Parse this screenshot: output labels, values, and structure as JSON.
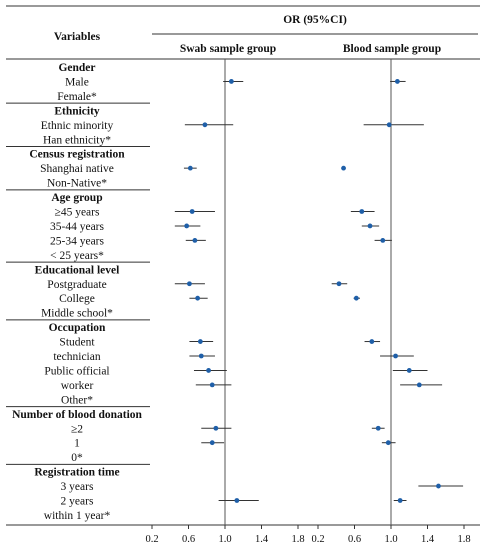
{
  "header": {
    "variables_label": "Variables",
    "or_label": "OR (95%CI)",
    "swab_label": "Swab sample group",
    "blood_label": "Blood sample group"
  },
  "colors": {
    "point": "#1f5fa8",
    "line": "#333333"
  },
  "chart_data": [
    {
      "type": "forest",
      "title": "Swab sample group",
      "xlim": [
        0.2,
        1.8
      ],
      "xticks": [
        0.2,
        0.6,
        1.0,
        1.4,
        1.8
      ],
      "reference_line": 1.0,
      "rows": [
        {
          "group": "Gender",
          "label": "Male",
          "or": 1.07,
          "lo": 0.98,
          "hi": 1.2
        },
        {
          "group": "Gender",
          "label": "Female*",
          "or": null
        },
        {
          "group": "Ethnicity",
          "label": "Ethnic minority",
          "or": 0.78,
          "lo": 0.56,
          "hi": 1.09
        },
        {
          "group": "Ethnicity",
          "label": "Han ethnicity*",
          "or": null
        },
        {
          "group": "Census registration",
          "label": "Shanghai native",
          "or": 0.62,
          "lo": 0.55,
          "hi": 0.69
        },
        {
          "group": "Census registration",
          "label": "Non-Native*",
          "or": null
        },
        {
          "group": "Age group",
          "label": "≥45 years",
          "or": 0.64,
          "lo": 0.45,
          "hi": 0.89
        },
        {
          "group": "Age group",
          "label": "35-44 years",
          "or": 0.58,
          "lo": 0.45,
          "hi": 0.73
        },
        {
          "group": "Age group",
          "label": "25-34 years",
          "or": 0.67,
          "lo": 0.57,
          "hi": 0.79
        },
        {
          "group": "Age group",
          "label": "< 25 years*",
          "or": null
        },
        {
          "group": "Educational level",
          "label": "Postgraduate",
          "or": 0.61,
          "lo": 0.45,
          "hi": 0.78
        },
        {
          "group": "Educational level",
          "label": "College",
          "or": 0.7,
          "lo": 0.61,
          "hi": 0.81
        },
        {
          "group": "Educational level",
          "label": "Middle school*",
          "or": null
        },
        {
          "group": "Occupation",
          "label": "Student",
          "or": 0.73,
          "lo": 0.61,
          "hi": 0.87
        },
        {
          "group": "Occupation",
          "label": "technician",
          "or": 0.74,
          "lo": 0.61,
          "hi": 0.89
        },
        {
          "group": "Occupation",
          "label": "Public official",
          "or": 0.82,
          "lo": 0.66,
          "hi": 1.02
        },
        {
          "group": "Occupation",
          "label": "worker",
          "or": 0.86,
          "lo": 0.68,
          "hi": 1.07
        },
        {
          "group": "Occupation",
          "label": "Other*",
          "or": null
        },
        {
          "group": "Number of blood donation",
          "label": "≥2",
          "or": 0.9,
          "lo": 0.74,
          "hi": 1.07
        },
        {
          "group": "Number of blood donation",
          "label": "1",
          "or": 0.86,
          "lo": 0.74,
          "hi": 0.99
        },
        {
          "group": "Number of blood donation",
          "label": "0*",
          "or": null
        },
        {
          "group": "Registration time",
          "label": "3 years",
          "or": null
        },
        {
          "group": "Registration time",
          "label": "2 years",
          "or": 1.13,
          "lo": 0.93,
          "hi": 1.37
        },
        {
          "group": "Registration time",
          "label": "within 1 year*",
          "or": null
        }
      ]
    },
    {
      "type": "forest",
      "title": "Blood sample group",
      "xlim": [
        0.2,
        1.8
      ],
      "xticks": [
        0.2,
        0.6,
        1.0,
        1.4,
        1.8
      ],
      "reference_line": 1.0,
      "rows": [
        {
          "group": "Gender",
          "label": "Male",
          "or": 1.07,
          "lo": 0.99,
          "hi": 1.16
        },
        {
          "group": "Gender",
          "label": "Female*",
          "or": null
        },
        {
          "group": "Ethnicity",
          "label": "Ethnic minority",
          "or": 0.98,
          "lo": 0.7,
          "hi": 1.36
        },
        {
          "group": "Ethnicity",
          "label": "Han ethnicity*",
          "or": null
        },
        {
          "group": "Census registration",
          "label": "Shanghai native",
          "or": 0.48,
          "lo": 0.46,
          "hi": 0.5
        },
        {
          "group": "Census registration",
          "label": "Non-Native*",
          "or": null
        },
        {
          "group": "Age group",
          "label": "≥45 years",
          "or": 0.68,
          "lo": 0.56,
          "hi": 0.82
        },
        {
          "group": "Age group",
          "label": "35-44 years",
          "or": 0.77,
          "lo": 0.68,
          "hi": 0.87
        },
        {
          "group": "Age group",
          "label": "25-34 years",
          "or": 0.91,
          "lo": 0.82,
          "hi": 1.01
        },
        {
          "group": "Age group",
          "label": "< 25 years*",
          "or": null
        },
        {
          "group": "Educational level",
          "label": "Postgraduate",
          "or": 0.43,
          "lo": 0.35,
          "hi": 0.52
        },
        {
          "group": "Educational level",
          "label": "College",
          "or": 0.62,
          "lo": 0.59,
          "hi": 0.66
        },
        {
          "group": "Educational level",
          "label": "Middle school*",
          "or": null
        },
        {
          "group": "Occupation",
          "label": "Student",
          "or": 0.79,
          "lo": 0.71,
          "hi": 0.88
        },
        {
          "group": "Occupation",
          "label": "technician",
          "or": 1.05,
          "lo": 0.88,
          "hi": 1.25
        },
        {
          "group": "Occupation",
          "label": "Public official",
          "or": 1.2,
          "lo": 1.02,
          "hi": 1.4
        },
        {
          "group": "Occupation",
          "label": "worker",
          "or": 1.31,
          "lo": 1.1,
          "hi": 1.56
        },
        {
          "group": "Occupation",
          "label": "Other*",
          "or": null
        },
        {
          "group": "Number of blood donation",
          "label": "≥2",
          "or": 0.86,
          "lo": 0.79,
          "hi": 0.93
        },
        {
          "group": "Number of blood donation",
          "label": "1",
          "or": 0.97,
          "lo": 0.9,
          "hi": 1.05
        },
        {
          "group": "Number of blood donation",
          "label": "0*",
          "or": null
        },
        {
          "group": "Registration time",
          "label": "3 years",
          "or": 1.52,
          "lo": 1.3,
          "hi": 1.79
        },
        {
          "group": "Registration time",
          "label": "2 years",
          "or": 1.1,
          "lo": 1.03,
          "hi": 1.17
        },
        {
          "group": "Registration time",
          "label": "within 1 year*",
          "or": null
        }
      ]
    }
  ],
  "sections": [
    {
      "title": "Gender",
      "rows": [
        "Male",
        "Female*"
      ]
    },
    {
      "title": "Ethnicity",
      "rows": [
        "Ethnic minority",
        "Han ethnicity*"
      ]
    },
    {
      "title": "Census registration",
      "rows": [
        "Shanghai native",
        "Non-Native*"
      ]
    },
    {
      "title": "Age group",
      "rows": [
        "≥45 years",
        "35-44 years",
        "25-34 years",
        "< 25 years*"
      ]
    },
    {
      "title": "Educational level",
      "rows": [
        "Postgraduate",
        "College",
        "Middle school*"
      ]
    },
    {
      "title": "Occupation",
      "rows": [
        "Student",
        "technician",
        "Public official",
        "worker",
        "Other*"
      ]
    },
    {
      "title": "Number of blood donation",
      "rows": [
        "≥2",
        "1",
        "0*"
      ]
    },
    {
      "title": "Registration time",
      "rows": [
        "3 years",
        "2 years",
        "within 1 year*"
      ]
    }
  ]
}
